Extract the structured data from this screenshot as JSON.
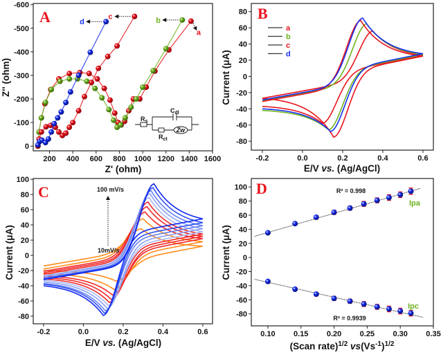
{
  "colors": {
    "red": "#e8141c",
    "green": "#6db21e",
    "blue": "#1530f0",
    "orange": "#ff8c1a"
  },
  "chart_data": [
    {
      "panel": "A",
      "type": "scatter",
      "xlabel": "Z' (ohm)",
      "ylabel": "Z'' (ohm)",
      "xlim": [
        60,
        1600
      ],
      "ylim": [
        20,
        -605
      ],
      "xticks": [
        200,
        400,
        600,
        800,
        1000,
        1200,
        1400,
        1600
      ],
      "yticks": [
        0,
        -100,
        -200,
        -300,
        -400,
        -500,
        -600
      ],
      "grid": false,
      "series": [
        {
          "name": "a",
          "color": "#e8141c",
          "points": [
            [
              100,
              0
            ],
            [
              110,
              -60
            ],
            [
              130,
              -120
            ],
            [
              160,
              -180
            ],
            [
              210,
              -240
            ],
            [
              280,
              -285
            ],
            [
              370,
              -308
            ],
            [
              460,
              -312
            ],
            [
              540,
              -308
            ],
            [
              610,
              -285
            ],
            [
              670,
              -245
            ],
            [
              720,
              -195
            ],
            [
              760,
              -140
            ],
            [
              790,
              -100
            ],
            [
              815,
              -90
            ],
            [
              845,
              -105
            ],
            [
              880,
              -150
            ],
            [
              920,
              -200
            ],
            [
              975,
              -200
            ],
            [
              1030,
              -250
            ],
            [
              1105,
              -318
            ],
            [
              1225,
              -408
            ],
            [
              1415,
              -530
            ]
          ]
        },
        {
          "name": "b",
          "color": "#6db21e",
          "points": [
            [
              100,
              0
            ],
            [
              110,
              -60
            ],
            [
              130,
              -120
            ],
            [
              165,
              -185
            ],
            [
              215,
              -240
            ],
            [
              290,
              -275
            ],
            [
              370,
              -285
            ],
            [
              440,
              -285
            ],
            [
              520,
              -275
            ],
            [
              590,
              -245
            ],
            [
              650,
              -205
            ],
            [
              710,
              -155
            ],
            [
              750,
              -110
            ],
            [
              780,
              -80
            ],
            [
              810,
              -90
            ],
            [
              850,
              -120
            ],
            [
              900,
              -165
            ],
            [
              945,
              -200
            ],
            [
              1000,
              -250
            ],
            [
              1090,
              -320
            ],
            [
              1200,
              -413
            ],
            [
              1340,
              -535
            ]
          ]
        },
        {
          "name": "c",
          "color": "#e8141c",
          "points": [
            [
              100,
              0
            ],
            [
              110,
              -30
            ],
            [
              130,
              -60
            ],
            [
              170,
              -82
            ],
            [
              210,
              -88
            ],
            [
              250,
              -80
            ],
            [
              280,
              -60
            ],
            [
              310,
              -45
            ],
            [
              340,
              -55
            ],
            [
              370,
              -80
            ],
            [
              400,
              -100
            ],
            [
              450,
              -150
            ],
            [
              500,
              -210
            ],
            [
              560,
              -270
            ],
            [
              620,
              -330
            ],
            [
              700,
              -380
            ],
            [
              780,
              -425
            ],
            [
              930,
              -550
            ]
          ]
        },
        {
          "name": "d",
          "color": "#1530f0",
          "points": [
            [
              100,
              -5
            ],
            [
              115,
              -20
            ],
            [
              135,
              -25
            ],
            [
              165,
              -15
            ],
            [
              190,
              -30
            ],
            [
              215,
              -60
            ],
            [
              240,
              -95
            ],
            [
              270,
              -120
            ],
            [
              300,
              -145
            ],
            [
              340,
              -185
            ],
            [
              380,
              -230
            ],
            [
              450,
              -300
            ],
            [
              550,
              -398
            ],
            [
              685,
              -528
            ]
          ]
        }
      ],
      "panel_label": "A",
      "inset_circuit": {
        "rs": {
          "main": "R",
          "sub": "s"
        },
        "cdl": {
          "main": "C",
          "sub": "dl"
        },
        "rct": {
          "main": "R",
          "sub": "ct"
        },
        "zw": "Zw"
      }
    },
    {
      "panel": "B",
      "type": "line",
      "xlabel_parts": [
        "E/V ",
        "vs.",
        " (Ag/AgCl)"
      ],
      "ylabel": "Current (μA)",
      "xlim": [
        -0.255,
        0.652
      ],
      "ylim": [
        -91,
        90
      ],
      "xticks": [
        -0.2,
        0.0,
        0.2,
        0.4,
        0.6
      ],
      "xtick_labels": [
        "-0.2",
        "0.0",
        "0.2",
        "0.4",
        "0.6"
      ],
      "yticks": [
        -80,
        -60,
        -40,
        -20,
        0,
        20,
        40,
        60,
        80
      ],
      "grid": false,
      "legend": "top-left",
      "panel_label": "B",
      "series": [
        {
          "name": "a",
          "color": "#e8141c",
          "anodic_peak": {
            "E": 0.35,
            "I": 56
          },
          "cathodic_peak": {
            "E": 0.1,
            "I": -58
          },
          "current_at_start": -27,
          "current_at_switch": 26,
          "current_at_end": -37
        },
        {
          "name": "b",
          "color": "#6db21e",
          "anodic_peak": {
            "E": 0.32,
            "I": 65
          },
          "cathodic_peak": {
            "E": 0.13,
            "I": -66
          },
          "current_at_start": -30,
          "current_at_switch": 27,
          "current_at_end": -42
        },
        {
          "name": "c",
          "color": "#e8141c",
          "anodic_peak": {
            "E": 0.29,
            "I": 69
          },
          "cathodic_peak": {
            "E": 0.155,
            "I": -75
          },
          "current_at_start": -31,
          "current_at_switch": 25,
          "current_at_end": -27
        },
        {
          "name": "d",
          "color": "#1530f0",
          "anodic_peak": {
            "E": 0.3,
            "I": 72
          },
          "cathodic_peak": {
            "E": 0.14,
            "I": -68
          },
          "current_at_start": -29,
          "current_at_switch": 28,
          "current_at_end": -40
        }
      ]
    },
    {
      "panel": "C",
      "type": "line",
      "xlabel_parts": [
        "E/V ",
        "vs.",
        " (Ag/AgCl)"
      ],
      "ylabel": "Current (μA)",
      "xlim": [
        -0.252,
        0.649
      ],
      "ylim": [
        -90,
        101
      ],
      "xticks": [
        -0.2,
        0.0,
        0.2,
        0.4,
        0.6
      ],
      "xtick_labels": [
        "-0.2",
        "0.0",
        "0.2",
        "0.4",
        "0.6"
      ],
      "yticks": [
        -80,
        -60,
        -40,
        -20,
        0,
        20,
        40,
        60,
        80,
        100
      ],
      "grid": false,
      "panel_label": "C",
      "annotations": {
        "high": "100 mV/s",
        "low": "10mV/s"
      },
      "series": [
        {
          "color": "#ff8c1a",
          "anodic_peak": {
            "E": 0.29,
            "I": 35
          },
          "cathodic_peak": {
            "E": 0.165,
            "I": -34
          },
          "current_at_start": -14,
          "current_at_switch": 12,
          "current_at_end": -20
        },
        {
          "color": "#ff8c1a",
          "anodic_peak": {
            "E": 0.3,
            "I": 48
          },
          "cathodic_peak": {
            "E": 0.155,
            "I": -45
          },
          "current_at_start": -18,
          "current_at_switch": 18,
          "current_at_end": -24
        },
        {
          "color": "#f02828",
          "anodic_peak": {
            "E": 0.31,
            "I": 57
          },
          "cathodic_peak": {
            "E": 0.145,
            "I": -52
          },
          "current_at_start": -21,
          "current_at_switch": 22,
          "current_at_end": -27
        },
        {
          "color": "#f02828",
          "anodic_peak": {
            "E": 0.32,
            "I": 64
          },
          "cathodic_peak": {
            "E": 0.14,
            "I": -58
          },
          "current_at_start": -23,
          "current_at_switch": 25,
          "current_at_end": -29
        },
        {
          "color": "#f02828",
          "anodic_peak": {
            "E": 0.325,
            "I": 70
          },
          "cathodic_peak": {
            "E": 0.13,
            "I": -62
          },
          "current_at_start": -25,
          "current_at_switch": 28,
          "current_at_end": -31
        },
        {
          "color": "#a8b8f5",
          "anodic_peak": {
            "E": 0.33,
            "I": 76
          },
          "cathodic_peak": {
            "E": 0.125,
            "I": -66
          },
          "current_at_start": -27,
          "current_at_switch": 31,
          "current_at_end": -33
        },
        {
          "color": "#8aa0f5",
          "anodic_peak": {
            "E": 0.335,
            "I": 81
          },
          "cathodic_peak": {
            "E": 0.12,
            "I": -70
          },
          "current_at_start": -28,
          "current_at_switch": 35,
          "current_at_end": -35
        },
        {
          "color": "#6680f2",
          "anodic_peak": {
            "E": 0.34,
            "I": 85
          },
          "cathodic_peak": {
            "E": 0.11,
            "I": -73
          },
          "current_at_start": -30,
          "current_at_switch": 39,
          "current_at_end": -37
        },
        {
          "color": "#3050f0",
          "anodic_peak": {
            "E": 0.35,
            "I": 89
          },
          "cathodic_peak": {
            "E": 0.105,
            "I": -76
          },
          "current_at_start": -31,
          "current_at_switch": 43,
          "current_at_end": -38
        },
        {
          "color": "#1028f0",
          "anodic_peak": {
            "E": 0.355,
            "I": 94
          },
          "cathodic_peak": {
            "E": 0.1,
            "I": -79
          },
          "current_at_start": -32,
          "current_at_switch": 48,
          "current_at_end": -40
        }
      ]
    },
    {
      "panel": "D",
      "type": "scatter",
      "xlabel_parts": [
        "(Scan rate)",
        "1/2",
        " vs",
        "(Vs",
        "-1",
        ")",
        "1/2"
      ],
      "ylabel": "Current (μA)",
      "xlim": [
        0.075,
        0.35
      ],
      "ylim": [
        -97,
        112
      ],
      "xticks": [
        0.1,
        0.15,
        0.2,
        0.25,
        0.3,
        0.35
      ],
      "xtick_labels": [
        "0.10",
        "0.15",
        "0.20",
        "0.25",
        "0.30",
        "0.35"
      ],
      "yticks": [
        -80,
        -60,
        -40,
        -20,
        0,
        20,
        40,
        60,
        80,
        100
      ],
      "grid": false,
      "panel_label": "D",
      "x": [
        0.1,
        0.141,
        0.173,
        0.2,
        0.224,
        0.245,
        0.265,
        0.283,
        0.3,
        0.316
      ],
      "series": [
        {
          "name": "Ipa",
          "label_color": "#6db21e",
          "values": [
            35,
            48,
            57,
            64,
            70,
            76,
            81,
            85,
            89,
            94
          ],
          "error": [
            2,
            2,
            2.5,
            3,
            3,
            3.5,
            3.5,
            4,
            4,
            4.5
          ],
          "fit": {
            "slope": 272,
            "intercept": 8.2,
            "x_range": [
              0.08,
              0.33
            ],
            "r2_label": "R² = 0.998"
          }
        },
        {
          "name": "Ipc",
          "label_color": "#6db21e",
          "values": [
            -34,
            -45,
            -52,
            -58,
            -62,
            -66,
            -70,
            -73,
            -76,
            -79
          ],
          "error": [
            2,
            2,
            2.5,
            3,
            3,
            3.5,
            3.5,
            4,
            4,
            4
          ],
          "fit": {
            "slope": -212,
            "intercept": -14,
            "x_range": [
              0.08,
              0.335
            ],
            "r2_label": "R² = 0.9939"
          }
        }
      ]
    }
  ]
}
